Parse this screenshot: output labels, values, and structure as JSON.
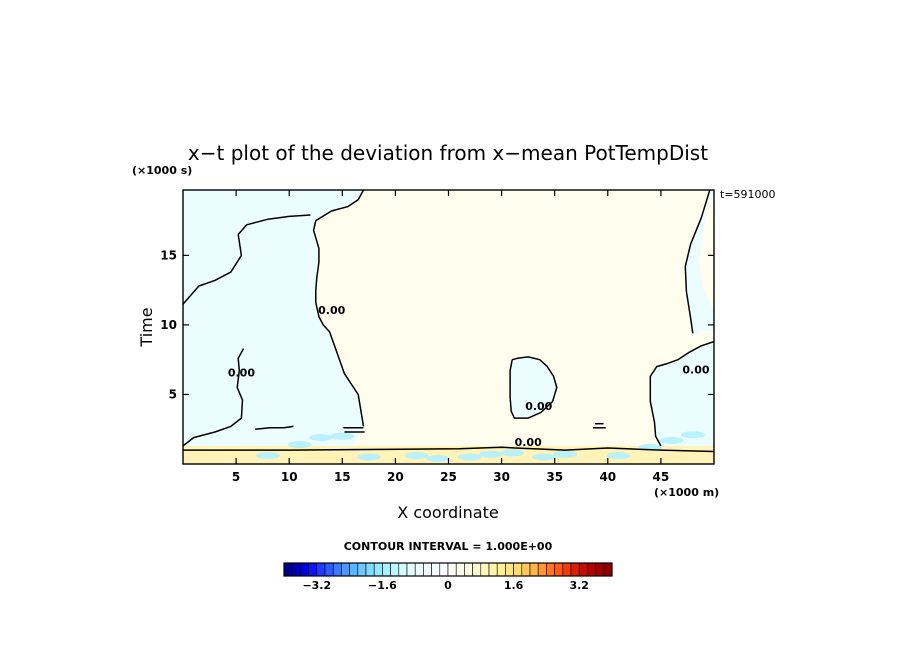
{
  "chart_data": {
    "type": "heatmap",
    "title": "x−t plot of the deviation from x−mean PotTempDist",
    "xlabel": "X coordinate",
    "ylabel": "Time",
    "x_unit": "(×1000 m)",
    "y_unit": "(×1000 s)",
    "xlim": [
      0,
      50
    ],
    "ylim": [
      0,
      19.7
    ],
    "x_ticks": [
      5,
      10,
      15,
      20,
      25,
      30,
      35,
      40,
      45
    ],
    "y_ticks": [
      5,
      10,
      15
    ],
    "time_label": "t=591000",
    "contour_label": "0.00",
    "contour_interval_label": "CONTOUR INTERVAL = 1.000E+00",
    "colorbar": {
      "min": -4,
      "max": 4,
      "step": 0.2,
      "tick_values": [
        -3.2,
        -1.6,
        0,
        1.6,
        3.2
      ],
      "tick_labels": [
        "−3.2",
        "−1.6",
        "0",
        "1.6",
        "3.2"
      ],
      "colors": [
        "#00008c",
        "#0000b4",
        "#0000dc",
        "#0a14f5",
        "#1e3cff",
        "#2d5aff",
        "#3c78ff",
        "#4b96ff",
        "#5ab4ff",
        "#6ec8ff",
        "#82dcff",
        "#96e6ff",
        "#aaf0ff",
        "#bef5ff",
        "#d2faff",
        "#e6fdff",
        "#f0feff",
        "#f4ffff",
        "#f8ffff",
        "#fcffff",
        "#fffff8",
        "#fffff0",
        "#ffffe6",
        "#fffcd2",
        "#fffabe",
        "#fff5aa",
        "#fff096",
        "#ffe682",
        "#ffdc6e",
        "#ffc85a",
        "#ffb446",
        "#ff9632",
        "#ff781e",
        "#ff5a0f",
        "#f03c0a",
        "#dc1e05",
        "#c80a00",
        "#b40000",
        "#a00000",
        "#8c0000"
      ]
    },
    "fill_colors": {
      "positive": "#fffdee",
      "negative": "#ecfdff",
      "band_warm": "#fff3b8",
      "band_cool": "#b4f0ff"
    },
    "regions": [
      {
        "sign": "negative",
        "points": [
          [
            0,
            1.3
          ],
          [
            0,
            11.5
          ],
          [
            1.5,
            12.8
          ],
          [
            3,
            13.2
          ],
          [
            4.5,
            13.8
          ],
          [
            5.5,
            15
          ],
          [
            5.2,
            16.5
          ],
          [
            6,
            17.2
          ],
          [
            8,
            17.6
          ],
          [
            10,
            17.8
          ],
          [
            12,
            17.9
          ],
          [
            14,
            18.2
          ],
          [
            15.5,
            18.5
          ],
          [
            16.5,
            19
          ],
          [
            17,
            19.7
          ],
          [
            0,
            19.7
          ]
        ]
      },
      {
        "sign": "positive",
        "points": [
          [
            0,
            1.3
          ],
          [
            1,
            1.9
          ],
          [
            3,
            2.3
          ],
          [
            4.5,
            2.7
          ],
          [
            5.5,
            3.3
          ],
          [
            5.6,
            4.6
          ],
          [
            5.1,
            5.5
          ],
          [
            5.3,
            6.7
          ],
          [
            5.2,
            7.6
          ],
          [
            5.7,
            8.3
          ],
          [
            6,
            7.1
          ],
          [
            6.2,
            5.5
          ],
          [
            6,
            4
          ],
          [
            6.5,
            3
          ],
          [
            7.4,
            2.6
          ],
          [
            8.5,
            2.6
          ],
          [
            9.5,
            2.8
          ],
          [
            10.5,
            1.4
          ]
        ]
      },
      {
        "sign": "negative",
        "points": [
          [
            16,
            1.3
          ],
          [
            17,
            2.7
          ],
          [
            16.5,
            5
          ],
          [
            15.2,
            6.5
          ],
          [
            14.5,
            8
          ],
          [
            13.8,
            9.5
          ],
          [
            13.2,
            10
          ],
          [
            12.8,
            10.6
          ],
          [
            12.5,
            11.6
          ],
          [
            12.5,
            12.5
          ],
          [
            12.6,
            13.4
          ],
          [
            12.8,
            14.5
          ],
          [
            12.8,
            15.5
          ],
          [
            12.3,
            16.8
          ],
          [
            12.5,
            17.5
          ],
          [
            14,
            18.2
          ],
          [
            15.5,
            18.5
          ],
          [
            16.5,
            19
          ],
          [
            17,
            19.7
          ],
          [
            0,
            19.7
          ],
          [
            0,
            1.3
          ]
        ]
      },
      {
        "sign": "negative",
        "points": [
          [
            31,
            7.5
          ],
          [
            30.8,
            6.7
          ],
          [
            30.8,
            4.8
          ],
          [
            30.9,
            3.8
          ],
          [
            31.2,
            3.3
          ],
          [
            32.5,
            3.3
          ],
          [
            33.7,
            3.7
          ],
          [
            34.8,
            4.5
          ],
          [
            35.2,
            5.5
          ],
          [
            34.9,
            6.3
          ],
          [
            34.3,
            7
          ],
          [
            33.6,
            7.5
          ],
          [
            32.5,
            7.7
          ],
          [
            31.5,
            7.6
          ]
        ]
      },
      {
        "sign": "negative",
        "points": [
          [
            50,
            1.3
          ],
          [
            50,
            8.8
          ],
          [
            48.8,
            8.5
          ],
          [
            47.6,
            8
          ],
          [
            46.6,
            7.5
          ],
          [
            45.5,
            7.2
          ],
          [
            44.6,
            7
          ],
          [
            44,
            6.3
          ],
          [
            44,
            4.5
          ],
          [
            44.4,
            3
          ],
          [
            44.5,
            2
          ],
          [
            45,
            1.3
          ]
        ]
      },
      {
        "sign": "negative",
        "points": [
          [
            50,
            19.7
          ],
          [
            50,
            19.3
          ],
          [
            48.8,
            17.7
          ],
          [
            47.8,
            15.8
          ],
          [
            47.3,
            14.2
          ],
          [
            47.4,
            12.4
          ],
          [
            47.8,
            10.5
          ],
          [
            48,
            9.4
          ],
          [
            48.2,
            9.2
          ],
          [
            48.6,
            9.5
          ],
          [
            50,
            9.6
          ],
          [
            50,
            11
          ],
          [
            49,
            12.5
          ],
          [
            48.6,
            14.5
          ],
          [
            49,
            17
          ],
          [
            49.6,
            19.7
          ]
        ]
      }
    ],
    "contours": [
      [
        [
          17,
          19.7
        ],
        [
          16.5,
          19
        ],
        [
          15.5,
          18.5
        ],
        [
          14,
          18.2
        ],
        [
          12.5,
          17.5
        ],
        [
          12.3,
          16.8
        ],
        [
          12.8,
          15.5
        ],
        [
          12.8,
          14.5
        ],
        [
          12.6,
          13.4
        ],
        [
          12.5,
          12.5
        ],
        [
          12.5,
          11.6
        ],
        [
          12.8,
          10.6
        ],
        [
          13.2,
          10
        ],
        [
          13.8,
          9.5
        ],
        [
          14.5,
          8
        ],
        [
          15.2,
          6.5
        ],
        [
          16.5,
          5
        ],
        [
          17,
          2.7
        ]
      ],
      [
        [
          0,
          11.5
        ],
        [
          1.5,
          12.8
        ],
        [
          3,
          13.2
        ],
        [
          4.5,
          13.8
        ],
        [
          5.5,
          15
        ],
        [
          5.2,
          16.5
        ],
        [
          6,
          17.2
        ],
        [
          8,
          17.6
        ],
        [
          10,
          17.8
        ],
        [
          12,
          17.9
        ]
      ],
      [
        [
          31,
          7.5
        ],
        [
          30.8,
          6.7
        ],
        [
          30.8,
          4.8
        ],
        [
          30.9,
          3.8
        ],
        [
          31.2,
          3.3
        ],
        [
          32.5,
          3.3
        ],
        [
          33.7,
          3.7
        ],
        [
          34.8,
          4.5
        ],
        [
          35.2,
          5.5
        ],
        [
          34.9,
          6.3
        ],
        [
          34.3,
          7
        ],
        [
          33.6,
          7.5
        ],
        [
          32.5,
          7.7
        ],
        [
          31.5,
          7.6
        ],
        [
          31,
          7.5
        ]
      ],
      [
        [
          50,
          8.8
        ],
        [
          48.8,
          8.5
        ],
        [
          47.6,
          8
        ],
        [
          46.6,
          7.5
        ],
        [
          45.5,
          7.2
        ],
        [
          44.6,
          7
        ],
        [
          44,
          6.3
        ],
        [
          44,
          4.5
        ],
        [
          44.4,
          3
        ],
        [
          44.5,
          2
        ],
        [
          45,
          1.3
        ]
      ],
      [
        [
          49.6,
          19.7
        ],
        [
          48.8,
          17.7
        ],
        [
          47.8,
          15.8
        ],
        [
          47.3,
          14.2
        ],
        [
          47.4,
          12.4
        ],
        [
          47.8,
          10.5
        ],
        [
          48,
          9.4
        ]
      ],
      [
        [
          0,
          1.3
        ],
        [
          1,
          1.9
        ],
        [
          3,
          2.3
        ],
        [
          4.5,
          2.7
        ],
        [
          5.5,
          3.3
        ],
        [
          5.6,
          4.6
        ],
        [
          5.1,
          5.5
        ],
        [
          5.3,
          6.7
        ],
        [
          5.2,
          7.6
        ],
        [
          5.7,
          8.3
        ]
      ],
      [
        [
          0,
          1.0
        ],
        [
          10,
          1.0
        ],
        [
          19,
          1.05
        ],
        [
          26,
          1.1
        ],
        [
          30,
          1.2
        ],
        [
          31.3,
          1.15
        ],
        [
          33,
          1.1
        ],
        [
          36,
          1.0
        ],
        [
          40,
          1.15
        ],
        [
          45,
          1.0
        ],
        [
          50,
          0.9
        ]
      ],
      [
        [
          6.8,
          2.5
        ],
        [
          8.2,
          2.6
        ],
        [
          9.5,
          2.6
        ],
        [
          10.4,
          2.7
        ]
      ],
      [
        [
          15.1,
          2.6
        ],
        [
          17,
          2.6
        ]
      ],
      [
        [
          15.2,
          2.3
        ],
        [
          17.1,
          2.3
        ]
      ],
      [
        [
          38.6,
          2.6
        ],
        [
          39.8,
          2.6
        ]
      ],
      [
        [
          38.8,
          2.9
        ],
        [
          39.6,
          2.9
        ]
      ]
    ],
    "contour_label_positions": [
      [
        14,
        10.8
      ],
      [
        5.5,
        6.3
      ],
      [
        33.5,
        3.9
      ],
      [
        48.3,
        6.5
      ],
      [
        32.5,
        1.3
      ]
    ],
    "noise_band": {
      "y_min": 0.0,
      "y_max": 1.3
    },
    "bright_spots": [
      [
        8,
        0.6
      ],
      [
        11,
        1.4
      ],
      [
        13,
        1.9
      ],
      [
        15,
        2.0
      ],
      [
        17.5,
        0.5
      ],
      [
        22,
        0.6
      ],
      [
        24,
        0.4
      ],
      [
        27,
        0.5
      ],
      [
        29,
        0.7
      ],
      [
        31,
        0.8
      ],
      [
        34,
        0.5
      ],
      [
        36,
        0.7
      ],
      [
        41,
        0.6
      ],
      [
        44,
        1.2
      ],
      [
        46,
        1.7
      ],
      [
        48,
        2.1
      ]
    ]
  }
}
